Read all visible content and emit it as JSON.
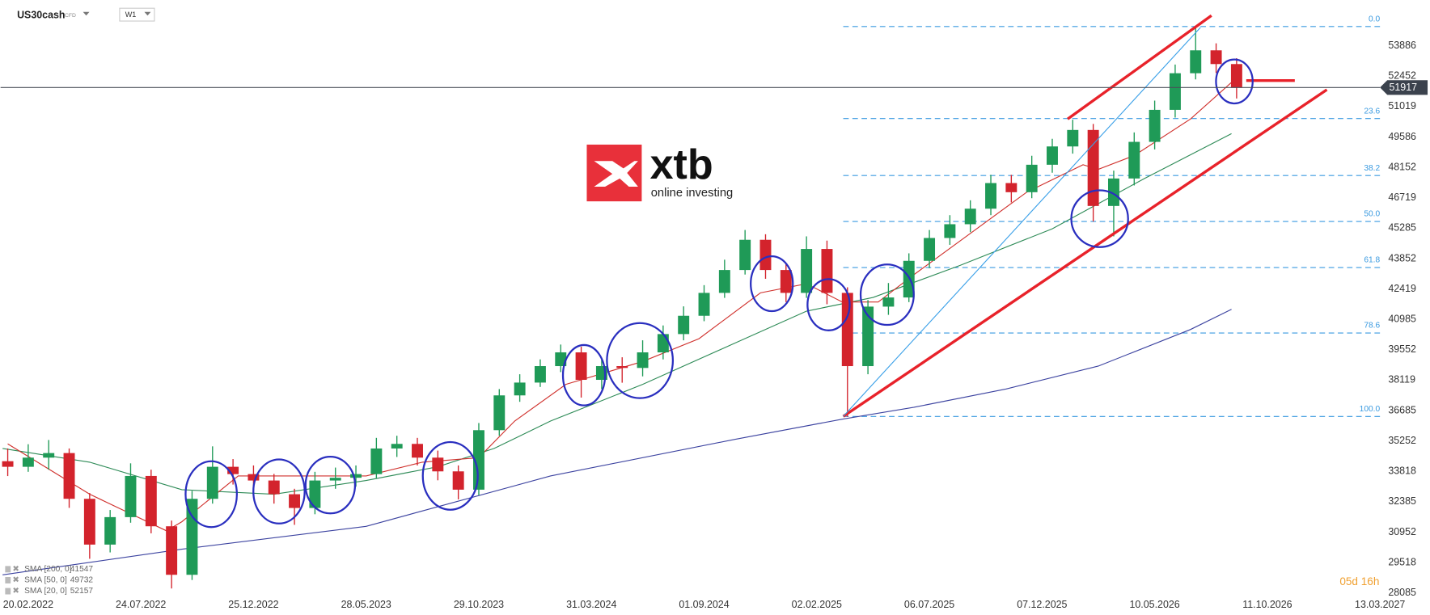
{
  "header": {
    "symbol": "US30cash",
    "instrument": "CFD",
    "timeframe": "W1"
  },
  "logo": {
    "brand": "xtb",
    "tagline": "online investing"
  },
  "chart_data": {
    "type": "candlestick",
    "xlim": [
      -5.4,
      264
    ],
    "ylim": [
      27783,
      56043
    ],
    "grid": false,
    "xticks": [
      {
        "value": 0,
        "label": "20.02.2022"
      },
      {
        "value": 22,
        "label": "24.07.2022"
      },
      {
        "value": 44,
        "label": "25.12.2022"
      },
      {
        "value": 66,
        "label": "28.05.2023"
      },
      {
        "value": 88,
        "label": "29.10.2023"
      },
      {
        "value": 110,
        "label": "31.03.2024"
      },
      {
        "value": 132,
        "label": "01.09.2024"
      },
      {
        "value": 154,
        "label": "02.02.2025"
      },
      {
        "value": 176,
        "label": "06.07.2025"
      },
      {
        "value": 198,
        "label": "07.12.2025"
      },
      {
        "value": 220,
        "label": "10.05.2026"
      },
      {
        "value": 242,
        "label": "11.10.2026"
      },
      {
        "value": 264,
        "label": "13.03.2027"
      }
    ],
    "yticks": [
      28085,
      29518,
      30952,
      32385,
      33818,
      35252,
      36685,
      38119,
      39552,
      40985,
      42419,
      43852,
      45285,
      46719,
      48152,
      49586,
      51019,
      52452,
      53886
    ],
    "up_color": "#1f9a57",
    "down_color": "#d3232c",
    "x": [
      -4,
      0,
      4,
      8,
      12,
      16,
      20,
      24,
      28,
      32,
      36,
      40,
      44,
      48,
      52,
      56,
      60,
      64,
      68,
      72,
      76,
      80,
      84,
      88,
      92,
      96,
      100,
      104,
      108,
      112,
      116,
      120,
      124,
      128,
      132,
      136,
      140,
      144,
      148,
      152,
      156,
      160,
      164,
      168,
      172,
      176,
      180,
      184,
      188,
      192,
      196,
      200,
      204,
      208,
      212,
      216,
      220,
      224,
      228,
      232,
      236
    ],
    "open": [
      34300,
      34037,
      34468,
      34684,
      32527,
      30369,
      31664,
      33605,
      31232,
      28945,
      32527,
      34037,
      33692,
      33390,
      32743,
      32095,
      33390,
      33519,
      33692,
      34900,
      35116,
      34468,
      33821,
      32958,
      35763,
      37403,
      38007,
      38783,
      39431,
      38136,
      38783,
      38697,
      39431,
      40294,
      41156,
      42235,
      43314,
      44738,
      43314,
      42235,
      44306,
      42235,
      38783,
      41588,
      42019,
      43746,
      44824,
      45472,
      46205,
      47413,
      46982,
      48276,
      49139,
      49916,
      46334,
      47629,
      49355,
      50865,
      52591,
      53670,
      53023
    ],
    "high": [
      34900,
      35100,
      35300,
      34900,
      32800,
      32000,
      34200,
      33900,
      31500,
      32900,
      35000,
      34400,
      34100,
      33700,
      33000,
      33800,
      34000,
      34100,
      35400,
      35500,
      35400,
      34800,
      34100,
      36100,
      37700,
      38400,
      39100,
      39800,
      39700,
      39100,
      39200,
      40000,
      40700,
      41600,
      42600,
      43800,
      45200,
      45000,
      43600,
      44900,
      44700,
      42500,
      41900,
      42700,
      44100,
      45200,
      45900,
      46600,
      47800,
      47800,
      48700,
      49500,
      50400,
      50200,
      48000,
      49800,
      51300,
      53000,
      54800,
      54000,
      53300
    ],
    "low": [
      33600,
      33800,
      33900,
      32100,
      29700,
      30000,
      31400,
      30900,
      28300,
      28700,
      32300,
      33200,
      32900,
      32300,
      31300,
      31800,
      33000,
      33100,
      33500,
      34500,
      34100,
      33400,
      32500,
      32700,
      35500,
      37100,
      37800,
      38500,
      37300,
      37700,
      38000,
      38300,
      39100,
      40000,
      40900,
      42000,
      43100,
      42900,
      41800,
      42000,
      41700,
      36400,
      38400,
      41200,
      41800,
      43400,
      44500,
      45100,
      45900,
      46500,
      46700,
      47900,
      48800,
      45600,
      44900,
      47300,
      49000,
      50500,
      52300,
      52600,
      51400
    ],
    "close": [
      34037,
      34468,
      34684,
      32527,
      30369,
      31664,
      33605,
      31232,
      28945,
      32527,
      34037,
      33692,
      33390,
      32743,
      32095,
      33390,
      33519,
      33692,
      34900,
      35116,
      34468,
      33821,
      32958,
      35763,
      37403,
      38007,
      38783,
      39431,
      38136,
      38783,
      38697,
      39431,
      40294,
      41156,
      42235,
      43314,
      44738,
      43314,
      42235,
      44306,
      42235,
      38783,
      41588,
      42019,
      43746,
      44824,
      45472,
      46205,
      47413,
      46982,
      48276,
      49139,
      49916,
      46334,
      47629,
      49355,
      50865,
      52591,
      53670,
      53023,
      51917
    ],
    "last_price": 51917,
    "overlays": [
      {
        "name": "SMA [200, 0]",
        "last_value": 41547,
        "color": "#3c43a0",
        "x": [
          -5,
          30,
          66,
          102,
          138,
          159,
          173,
          191,
          209,
          227,
          235
        ],
        "values": [
          28945,
          30153,
          31232,
          33605,
          35331,
          36281,
          36842,
          37705,
          38783,
          40509,
          41458
        ]
      },
      {
        "name": "SMA [50, 0]",
        "last_value": 49732,
        "color": "#2e8b57",
        "x": [
          -5,
          12,
          30,
          48,
          66,
          80,
          91,
          102,
          120,
          138,
          152,
          165,
          182,
          200,
          218,
          235
        ],
        "values": [
          34900,
          34253,
          32958,
          32743,
          33390,
          34037,
          34900,
          36194,
          37921,
          39862,
          41372,
          42019,
          43533,
          45256,
          47629,
          49743
        ]
      },
      {
        "name": "SMA [20, 0]",
        "last_value": 52157,
        "color": "#d0312d",
        "x": [
          -4,
          12,
          27,
          30,
          41,
          52,
          66,
          77,
          88,
          95,
          105,
          120,
          131,
          143,
          152,
          159,
          166,
          173,
          184,
          195,
          206,
          209,
          216,
          227,
          235
        ],
        "values": [
          35116,
          32743,
          31017,
          31447,
          33605,
          33605,
          33605,
          34253,
          34468,
          36194,
          37921,
          38999,
          40077,
          42235,
          42666,
          41804,
          41804,
          43098,
          45040,
          46982,
          48276,
          48060,
          48708,
          50434,
          52159
        ]
      }
    ],
    "fib": {
      "high": 54792,
      "low": 36410,
      "color": "#3a9ae0",
      "levels": [
        {
          "value": 0,
          "label": "0.0"
        },
        23.6,
        38.2,
        {
          "value": 50,
          "label": "50.0"
        },
        61.8,
        78.6,
        {
          "value": 100,
          "label": "100.0"
        }
      ]
    },
    "timer": "05d 16h"
  }
}
